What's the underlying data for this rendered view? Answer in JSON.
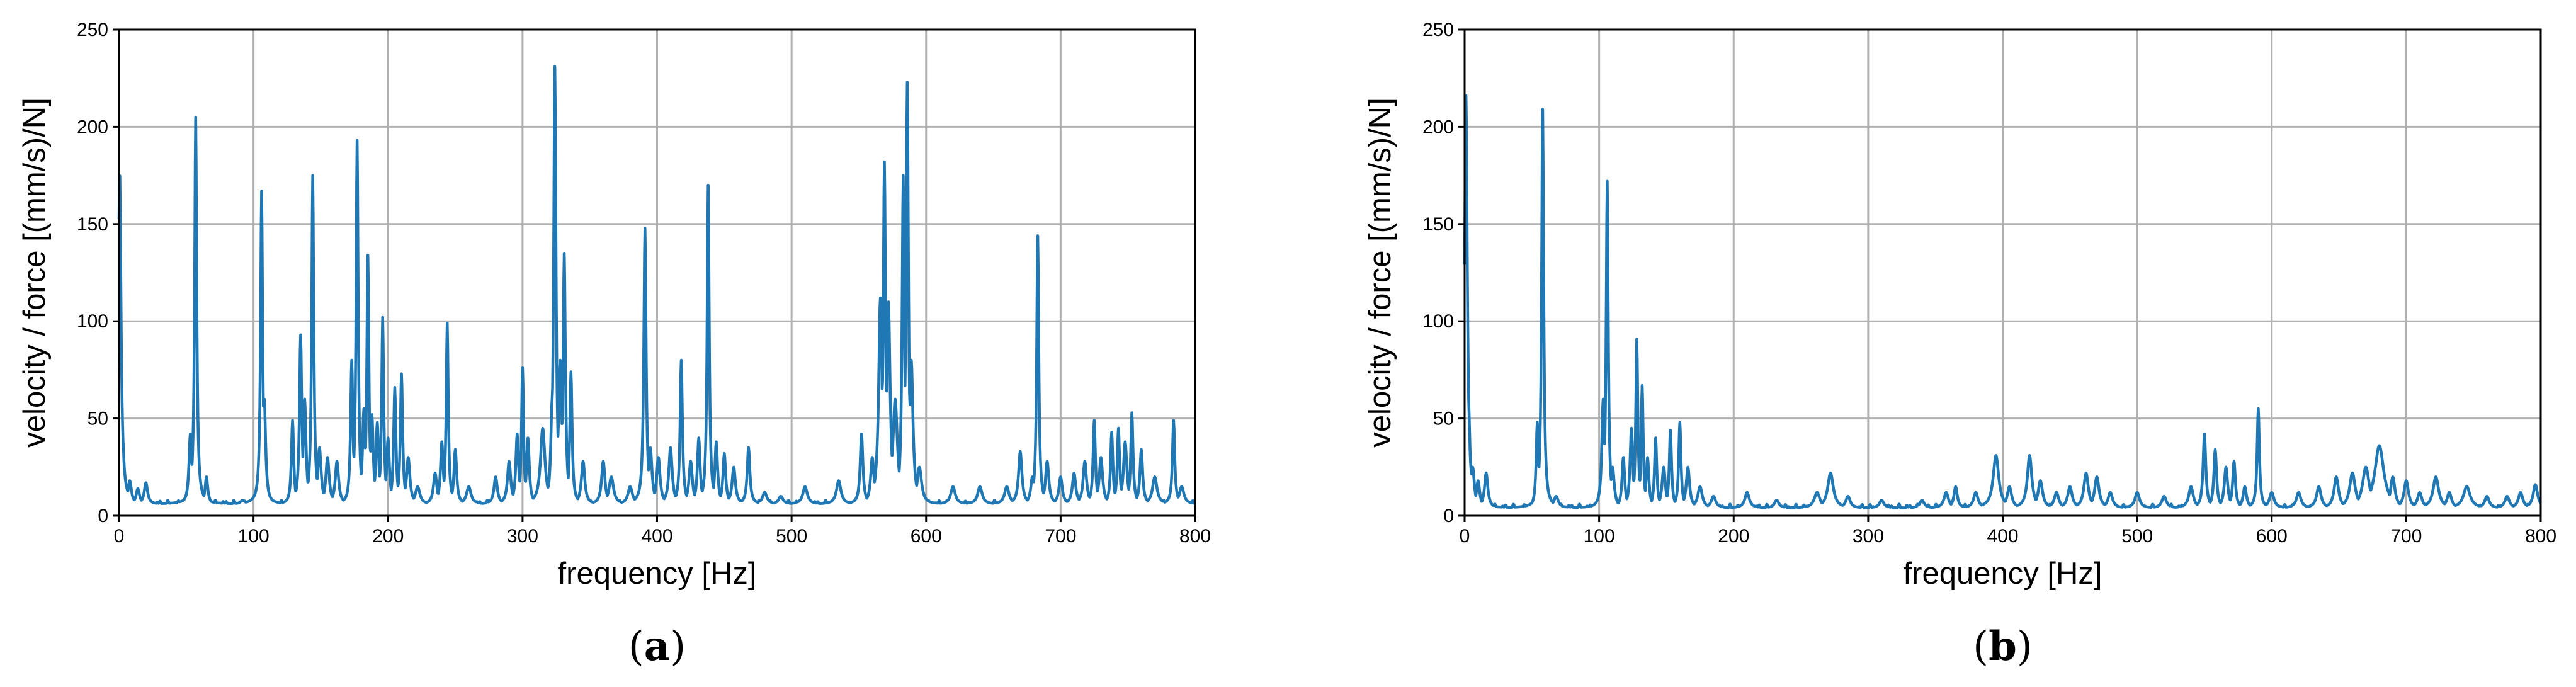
{
  "chart_data": [
    {
      "type": "line",
      "caption": {
        "open": "(",
        "letter": "a",
        "close": ")"
      },
      "xlabel": "frequency [Hz]",
      "ylabel": "velocity / force [(mm/s)/N]",
      "xlim": [
        0,
        800
      ],
      "ylim": [
        0,
        250
      ],
      "xticks": [
        "0",
        "100",
        "200",
        "300",
        "400",
        "500",
        "600",
        "700",
        "800"
      ],
      "yticks": [
        "0",
        "50",
        "100",
        "150",
        "200",
        "250"
      ],
      "grid": true,
      "color": "#1f77b4",
      "baseline": 6,
      "peaks": [
        [
          0.5,
          178,
          1.2
        ],
        [
          3,
          38,
          1.0
        ],
        [
          8,
          18,
          1.5
        ],
        [
          14,
          14,
          1.5
        ],
        [
          20,
          17,
          1.5
        ],
        [
          53,
          42,
          1.2
        ],
        [
          57,
          205,
          0.9
        ],
        [
          65,
          20,
          1.2
        ],
        [
          92,
          8,
          2
        ],
        [
          106,
          167,
          0.9
        ],
        [
          108,
          60,
          1.2
        ],
        [
          129,
          49,
          1.0
        ],
        [
          135,
          93,
          1.0
        ],
        [
          138,
          60,
          1.2
        ],
        [
          144,
          175,
          0.9
        ],
        [
          149,
          35,
          1.5
        ],
        [
          155,
          30,
          1.5
        ],
        [
          162,
          28,
          1.5
        ],
        [
          173,
          80,
          1.0
        ],
        [
          177,
          193,
          0.9
        ],
        [
          182,
          55,
          1.2
        ],
        [
          185,
          134,
          0.9
        ],
        [
          188,
          52,
          1.2
        ],
        [
          192,
          48,
          1.2
        ],
        [
          196,
          102,
          0.9
        ],
        [
          200,
          40,
          1.2
        ],
        [
          205,
          66,
          1.0
        ],
        [
          210,
          73,
          1.0
        ],
        [
          215,
          30,
          1.5
        ],
        [
          222,
          15,
          2
        ],
        [
          235,
          22,
          1.5
        ],
        [
          240,
          38,
          1.2
        ],
        [
          244,
          99,
          0.9
        ],
        [
          250,
          34,
          1.2
        ],
        [
          260,
          15,
          2
        ],
        [
          280,
          20,
          1.5
        ],
        [
          290,
          28,
          1.5
        ],
        [
          296,
          42,
          1.2
        ],
        [
          300,
          76,
          0.9
        ],
        [
          304,
          40,
          1.2
        ],
        [
          315,
          45,
          2.0
        ],
        [
          322,
          60,
          1.2
        ],
        [
          324,
          231,
          1.0
        ],
        [
          328,
          80,
          1.5
        ],
        [
          331,
          135,
          1.0
        ],
        [
          336,
          74,
          1.0
        ],
        [
          345,
          28,
          1.5
        ],
        [
          360,
          28,
          1.5
        ],
        [
          366,
          20,
          2
        ],
        [
          380,
          15,
          2
        ],
        [
          391,
          148,
          1.0
        ],
        [
          395,
          35,
          1.5
        ],
        [
          401,
          30,
          1.5
        ],
        [
          410,
          35,
          1.5
        ],
        [
          418,
          80,
          1.0
        ],
        [
          425,
          28,
          1.5
        ],
        [
          431,
          40,
          1.2
        ],
        [
          438,
          170,
          0.9
        ],
        [
          444,
          38,
          1.2
        ],
        [
          450,
          32,
          1.2
        ],
        [
          457,
          25,
          1.5
        ],
        [
          468,
          35,
          1.2
        ],
        [
          480,
          12,
          2
        ],
        [
          492,
          10,
          2
        ],
        [
          510,
          15,
          2
        ],
        [
          535,
          18,
          2
        ],
        [
          552,
          42,
          1.2
        ],
        [
          560,
          30,
          1.5
        ],
        [
          566,
          112,
          1.5
        ],
        [
          569,
          182,
          1.0
        ],
        [
          572,
          110,
          1.5
        ],
        [
          577,
          60,
          2.0
        ],
        [
          583,
          175,
          1.0
        ],
        [
          586,
          223,
          1.0
        ],
        [
          589,
          80,
          1.5
        ],
        [
          595,
          25,
          2
        ],
        [
          620,
          15,
          2
        ],
        [
          640,
          15,
          2
        ],
        [
          660,
          15,
          2
        ],
        [
          670,
          33,
          1.5
        ],
        [
          679,
          20,
          1.5
        ],
        [
          683,
          144,
          0.9
        ],
        [
          690,
          28,
          1.5
        ],
        [
          700,
          20,
          1.5
        ],
        [
          710,
          22,
          1.5
        ],
        [
          718,
          28,
          1.5
        ],
        [
          725,
          49,
          1.0
        ],
        [
          730,
          30,
          1.5
        ],
        [
          738,
          43,
          1.0
        ],
        [
          743,
          45,
          1.0
        ],
        [
          748,
          38,
          1.5
        ],
        [
          753,
          53,
          1.0
        ],
        [
          760,
          34,
          1.2
        ],
        [
          770,
          20,
          2
        ],
        [
          784,
          49,
          1.0
        ],
        [
          790,
          15,
          2
        ]
      ]
    },
    {
      "type": "line",
      "caption": {
        "open": "(",
        "letter": "b",
        "close": ")"
      },
      "xlabel": "frequency [Hz]",
      "ylabel": "velocity / force [(mm/s)/N]",
      "xlim": [
        0,
        800
      ],
      "ylim": [
        0,
        250
      ],
      "xticks": [
        "0",
        "100",
        "200",
        "300",
        "400",
        "500",
        "600",
        "700",
        "800"
      ],
      "yticks": [
        "0",
        "50",
        "100",
        "150",
        "200",
        "250"
      ],
      "grid": true,
      "color": "#1f77b4",
      "baseline": 4,
      "peaks": [
        [
          1,
          216,
          1.2
        ],
        [
          3,
          56,
          1.2
        ],
        [
          6,
          25,
          1.5
        ],
        [
          10,
          18,
          1.5
        ],
        [
          16,
          22,
          1.5
        ],
        [
          54,
          48,
          1.0
        ],
        [
          58,
          209,
          0.9
        ],
        [
          68,
          10,
          2
        ],
        [
          103,
          60,
          1.2
        ],
        [
          106,
          172,
          0.9
        ],
        [
          110,
          25,
          1.5
        ],
        [
          118,
          30,
          1.2
        ],
        [
          124,
          45,
          1.2
        ],
        [
          128,
          91,
          0.9
        ],
        [
          132,
          67,
          0.9
        ],
        [
          136,
          30,
          1.2
        ],
        [
          142,
          40,
          1.0
        ],
        [
          148,
          25,
          1.5
        ],
        [
          153,
          44,
          1.0
        ],
        [
          160,
          48,
          1.0
        ],
        [
          166,
          25,
          1.5
        ],
        [
          175,
          15,
          2
        ],
        [
          185,
          10,
          2
        ],
        [
          210,
          12,
          2
        ],
        [
          232,
          8,
          2
        ],
        [
          262,
          12,
          2.5
        ],
        [
          272,
          22,
          2.5
        ],
        [
          285,
          10,
          2
        ],
        [
          310,
          8,
          2
        ],
        [
          340,
          8,
          2
        ],
        [
          358,
          12,
          2
        ],
        [
          365,
          15,
          1.5
        ],
        [
          380,
          12,
          2
        ],
        [
          395,
          31,
          2.5
        ],
        [
          405,
          15,
          2
        ],
        [
          420,
          31,
          2.0
        ],
        [
          428,
          18,
          2
        ],
        [
          440,
          12,
          2
        ],
        [
          450,
          15,
          2
        ],
        [
          462,
          22,
          2
        ],
        [
          470,
          20,
          2
        ],
        [
          480,
          12,
          2
        ],
        [
          500,
          12,
          2
        ],
        [
          520,
          10,
          2
        ],
        [
          540,
          15,
          2
        ],
        [
          550,
          42,
          1.2
        ],
        [
          558,
          34,
          1.2
        ],
        [
          566,
          25,
          1.5
        ],
        [
          572,
          28,
          1.2
        ],
        [
          580,
          15,
          1.5
        ],
        [
          590,
          55,
          1.0
        ],
        [
          600,
          12,
          2
        ],
        [
          620,
          12,
          2
        ],
        [
          635,
          15,
          2
        ],
        [
          648,
          20,
          2
        ],
        [
          660,
          22,
          2.5
        ],
        [
          670,
          25,
          3
        ],
        [
          680,
          36,
          4
        ],
        [
          690,
          20,
          2
        ],
        [
          700,
          18,
          2
        ],
        [
          710,
          12,
          2
        ],
        [
          722,
          20,
          2.5
        ],
        [
          732,
          12,
          2
        ],
        [
          745,
          15,
          3
        ],
        [
          760,
          10,
          2
        ],
        [
          775,
          10,
          2
        ],
        [
          785,
          12,
          2
        ],
        [
          796,
          16,
          2
        ]
      ]
    }
  ]
}
